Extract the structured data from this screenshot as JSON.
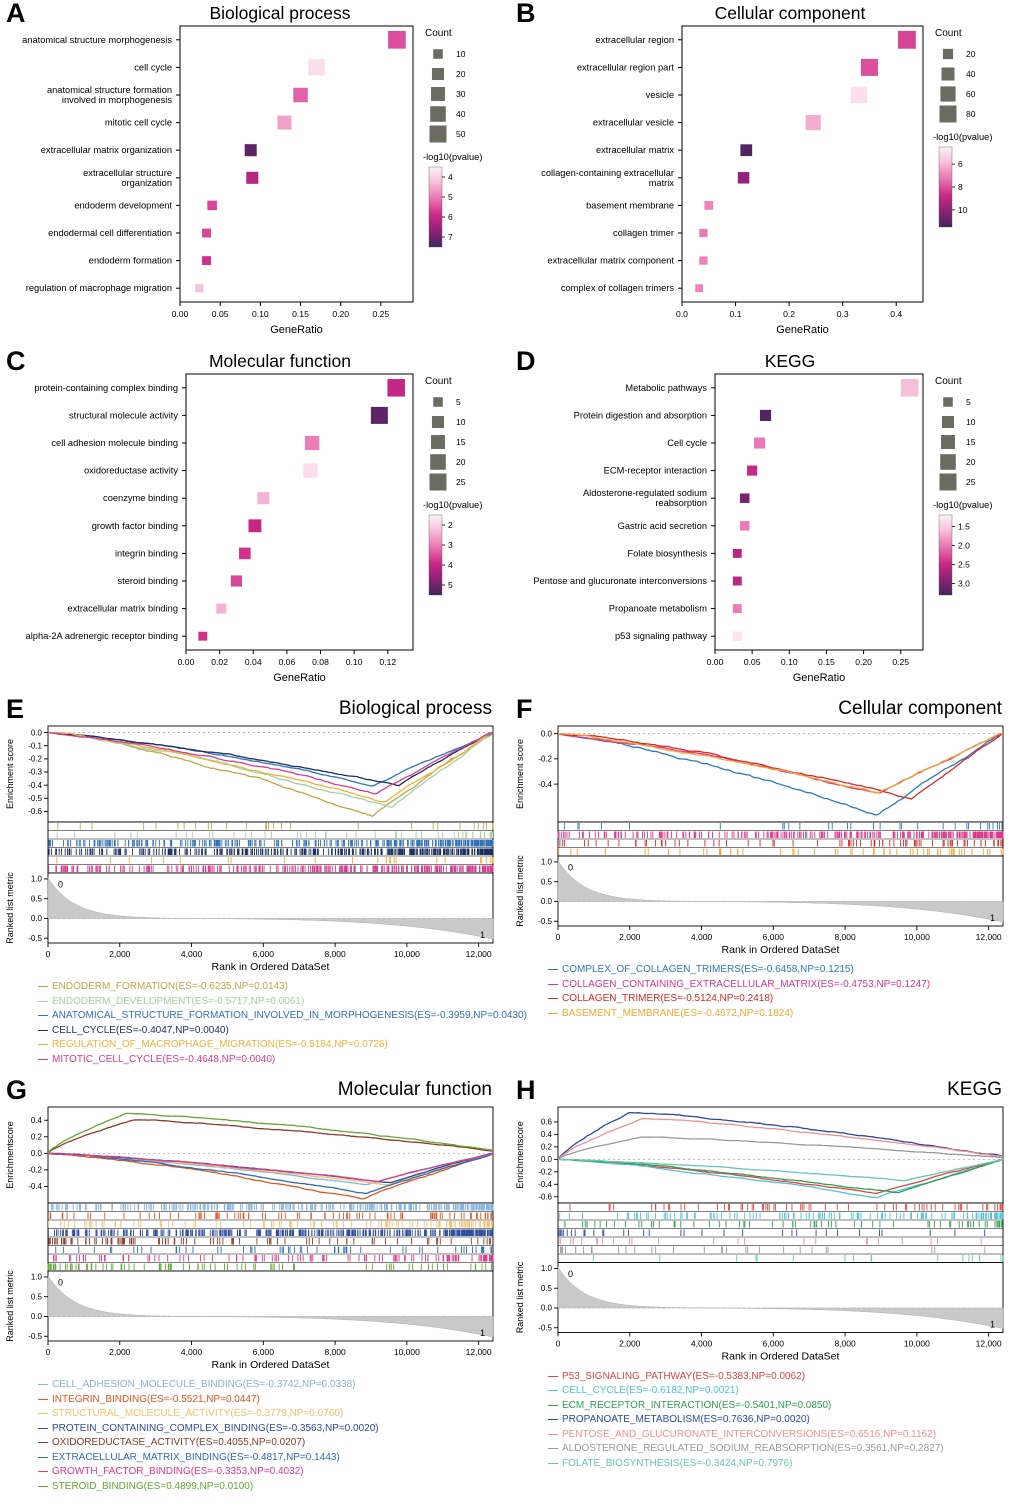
{
  "style": {
    "pvalue_gradient": [
      "#fdf3f8",
      "#f6bcd8",
      "#ea74b2",
      "#cb2a86",
      "#8c2277",
      "#41265c"
    ],
    "count_square_color": "#6b6b5f",
    "metric_fill": "#c9c9c9",
    "metric_stroke": "#b0b0b0",
    "frame_color": "#000000"
  },
  "panels": [
    {
      "letter": "A",
      "title": "Biological process",
      "kind": "dotplot",
      "chart": 0
    },
    {
      "letter": "B",
      "title": "Cellular component",
      "kind": "dotplot",
      "chart": 1
    },
    {
      "letter": "C",
      "title": "Molecular function",
      "kind": "dotplot",
      "chart": 2
    },
    {
      "letter": "D",
      "title": "KEGG",
      "kind": "dotplot",
      "chart": 3
    },
    {
      "letter": "E",
      "title": "Biological process",
      "kind": "gsea",
      "chart": 4
    },
    {
      "letter": "F",
      "title": "Cellular component",
      "kind": "gsea",
      "chart": 5
    },
    {
      "letter": "G",
      "title": "Molecular function",
      "kind": "gsea",
      "chart": 6
    },
    {
      "letter": "H",
      "title": "KEGG",
      "kind": "gsea",
      "chart": 7
    }
  ],
  "chart_data": [
    {
      "type": "scatter",
      "panel": "A",
      "title": "Biological process",
      "xlabel": "GeneRatio",
      "xlim": [
        0,
        0.29
      ],
      "xticks": [
        "0.00",
        "0.05",
        "0.10",
        "0.15",
        "0.20",
        "0.25"
      ],
      "count_legend": {
        "title": "Count",
        "values": [
          10,
          20,
          30,
          40,
          50
        ]
      },
      "pvalue_legend": {
        "title": "-log10(pvalue)",
        "ticks": [
          "4",
          "5",
          "6",
          "7"
        ],
        "range": [
          3.5,
          7.5
        ]
      },
      "points": [
        {
          "term": "anatomical structure morphogenesis",
          "gene_ratio": 0.27,
          "count": 55,
          "neglog10_pvalue": 5.5
        },
        {
          "term": "cell cycle",
          "gene_ratio": 0.17,
          "count": 45,
          "neglog10_pvalue": 3.8
        },
        {
          "term": "anatomical structure formation involved in morphogenesis",
          "gene_ratio": 0.15,
          "count": 33,
          "neglog10_pvalue": 5.3
        },
        {
          "term": "mitotic cell cycle",
          "gene_ratio": 0.13,
          "count": 30,
          "neglog10_pvalue": 4.6
        },
        {
          "term": "extracellular matrix organization",
          "gene_ratio": 0.088,
          "count": 20,
          "neglog10_pvalue": 7.2
        },
        {
          "term": "extracellular structure organization",
          "gene_ratio": 0.09,
          "count": 20,
          "neglog10_pvalue": 6.2
        },
        {
          "term": "endoderm development",
          "gene_ratio": 0.04,
          "count": 10,
          "neglog10_pvalue": 5.6
        },
        {
          "term": "endodermal cell differentiation",
          "gene_ratio": 0.033,
          "count": 8,
          "neglog10_pvalue": 5.6
        },
        {
          "term": "endoderm formation",
          "gene_ratio": 0.033,
          "count": 8,
          "neglog10_pvalue": 5.8
        },
        {
          "term": "regulation of macrophage migration",
          "gene_ratio": 0.024,
          "count": 6,
          "neglog10_pvalue": 4.2
        }
      ]
    },
    {
      "type": "scatter",
      "panel": "B",
      "title": "Cellular component",
      "xlabel": "GeneRatio",
      "xlim": [
        0,
        0.45
      ],
      "xticks": [
        "0.0",
        "0.1",
        "0.2",
        "0.3",
        "0.4"
      ],
      "count_legend": {
        "title": "Count",
        "values": [
          20,
          40,
          60,
          80
        ]
      },
      "pvalue_legend": {
        "title": "-log10(pvalue)",
        "ticks": [
          "6",
          "8",
          "10"
        ],
        "range": [
          4.5,
          11.5
        ]
      },
      "points": [
        {
          "term": "extracellular region",
          "gene_ratio": 0.42,
          "count": 90,
          "neglog10_pvalue": 8.2
        },
        {
          "term": "extracellular region part",
          "gene_ratio": 0.35,
          "count": 80,
          "neglog10_pvalue": 8.0
        },
        {
          "term": "vesicle",
          "gene_ratio": 0.33,
          "count": 72,
          "neglog10_pvalue": 5.0
        },
        {
          "term": "extracellular vesicle",
          "gene_ratio": 0.245,
          "count": 60,
          "neglog10_pvalue": 6.2
        },
        {
          "term": "extracellular matrix",
          "gene_ratio": 0.12,
          "count": 30,
          "neglog10_pvalue": 11.2
        },
        {
          "term": "collagen-containing extracellular matrix",
          "gene_ratio": 0.115,
          "count": 28,
          "neglog10_pvalue": 10.0
        },
        {
          "term": "basement membrane",
          "gene_ratio": 0.05,
          "count": 12,
          "neglog10_pvalue": 7.0
        },
        {
          "term": "collagen trimer",
          "gene_ratio": 0.04,
          "count": 10,
          "neglog10_pvalue": 7.2
        },
        {
          "term": "extracellular matrix component",
          "gene_ratio": 0.04,
          "count": 10,
          "neglog10_pvalue": 7.0
        },
        {
          "term": "complex of collagen trimers",
          "gene_ratio": 0.032,
          "count": 8,
          "neglog10_pvalue": 7.0
        }
      ]
    },
    {
      "type": "scatter",
      "panel": "C",
      "title": "Molecular function",
      "xlabel": "GeneRatio",
      "xlim": [
        0,
        0.135
      ],
      "xticks": [
        "0.00",
        "0.02",
        "0.04",
        "0.06",
        "0.08",
        "0.10",
        "0.12"
      ],
      "count_legend": {
        "title": "Count",
        "values": [
          5,
          10,
          15,
          20,
          25
        ]
      },
      "pvalue_legend": {
        "title": "-log10(pvalue)",
        "ticks": [
          "2",
          "3",
          "4",
          "5"
        ],
        "range": [
          1.5,
          5.5
        ]
      },
      "points": [
        {
          "term": "protein-containing complex binding",
          "gene_ratio": 0.125,
          "count": 27,
          "neglog10_pvalue": 4.0
        },
        {
          "term": "structural molecule activity",
          "gene_ratio": 0.115,
          "count": 25,
          "neglog10_pvalue": 5.2
        },
        {
          "term": "cell adhesion molecule binding",
          "gene_ratio": 0.075,
          "count": 16,
          "neglog10_pvalue": 3.0
        },
        {
          "term": "oxidoreductase activity",
          "gene_ratio": 0.074,
          "count": 16,
          "neglog10_pvalue": 1.8
        },
        {
          "term": "coenzyme binding",
          "gene_ratio": 0.046,
          "count": 10,
          "neglog10_pvalue": 2.4
        },
        {
          "term": "growth factor binding",
          "gene_ratio": 0.041,
          "count": 12,
          "neglog10_pvalue": 4.0
        },
        {
          "term": "integrin binding",
          "gene_ratio": 0.035,
          "count": 9,
          "neglog10_pvalue": 3.8
        },
        {
          "term": "steroid binding",
          "gene_ratio": 0.03,
          "count": 8,
          "neglog10_pvalue": 3.6
        },
        {
          "term": "extracellular matrix binding",
          "gene_ratio": 0.021,
          "count": 6,
          "neglog10_pvalue": 2.4
        },
        {
          "term": "alpha-2A adrenergic receptor binding",
          "gene_ratio": 0.01,
          "count": 4,
          "neglog10_pvalue": 3.8
        }
      ]
    },
    {
      "type": "scatter",
      "panel": "D",
      "title": "KEGG",
      "xlabel": "GeneRatio",
      "xlim": [
        0,
        0.28
      ],
      "xticks": [
        "0.00",
        "0.05",
        "0.10",
        "0.15",
        "0.20",
        "0.25"
      ],
      "count_legend": {
        "title": "Count",
        "values": [
          5,
          10,
          15,
          20,
          25
        ]
      },
      "pvalue_legend": {
        "title": "-log10(pvalue)",
        "ticks": [
          "1.5",
          "2.0",
          "2.5",
          "3.0"
        ],
        "range": [
          1.2,
          3.3
        ]
      },
      "points": [
        {
          "term": "Metabolic pathways",
          "gene_ratio": 0.262,
          "count": 27,
          "neglog10_pvalue": 1.6
        },
        {
          "term": "Protein digestion and absorption",
          "gene_ratio": 0.068,
          "count": 8,
          "neglog10_pvalue": 3.2
        },
        {
          "term": "Cell cycle",
          "gene_ratio": 0.06,
          "count": 8,
          "neglog10_pvalue": 2.0
        },
        {
          "term": "ECM-receptor interaction",
          "gene_ratio": 0.05,
          "count": 6,
          "neglog10_pvalue": 2.5
        },
        {
          "term": "Aldosterone-regulated sodium reabsorption",
          "gene_ratio": 0.04,
          "count": 5,
          "neglog10_pvalue": 3.0
        },
        {
          "term": "Gastric acid secretion",
          "gene_ratio": 0.04,
          "count": 5,
          "neglog10_pvalue": 2.0
        },
        {
          "term": "Folate biosynthesis",
          "gene_ratio": 0.03,
          "count": 4,
          "neglog10_pvalue": 2.6
        },
        {
          "term": "Pentose and glucuronate interconversions",
          "gene_ratio": 0.03,
          "count": 4,
          "neglog10_pvalue": 2.6
        },
        {
          "term": "Propanoate metabolism",
          "gene_ratio": 0.03,
          "count": 4,
          "neglog10_pvalue": 2.0
        },
        {
          "term": "p53 signaling pathway",
          "gene_ratio": 0.03,
          "count": 5,
          "neglog10_pvalue": 1.3
        }
      ]
    },
    {
      "type": "line",
      "panel": "E",
      "title": "Biological process",
      "es_ylabel": "Enrichment score",
      "metric_ylabel": "Ranked list metric",
      "xlabel": "Rank in Ordered DataSet",
      "xlim": [
        0,
        12400
      ],
      "xticks": [
        "0",
        "2,000",
        "4,000",
        "6,000",
        "8,000",
        "10,000",
        "12,000"
      ],
      "es_yticks": [
        "0.0",
        "-0.1",
        "-0.2",
        "-0.3",
        "-0.4",
        "-0.5",
        "-0.6"
      ],
      "es_ylim": [
        -0.68,
        0.05
      ],
      "metric_yticks": [
        "1.0",
        "0.5",
        "0.0",
        "-0.5"
      ],
      "metric_ylim": [
        -0.62,
        1.15
      ],
      "metric_annotations": {
        "start": "0",
        "end": "1"
      },
      "series": [
        {
          "name": "ENDODERM_FORMATION",
          "es": "-0.6235",
          "np": "0.0143",
          "color": "#bfa54e",
          "hits": 30
        },
        {
          "name": "ENDODERM_DEVELOPMENT",
          "es": "-0.5717",
          "np": "0.0061",
          "color": "#a3d39c",
          "hits": 45
        },
        {
          "name": "ANATOMICAL_STRUCTURE_FORMATION_INVOLVED_IN_MORPHOGENESIS",
          "es": "-0.3959",
          "np": "0.0430",
          "color": "#2f72b8",
          "hits": 320
        },
        {
          "name": "CELL_CYCLE",
          "es": "-0.4047",
          "np": "0.0040",
          "color": "#1b2f5e",
          "hits": 380
        },
        {
          "name": "REGULATION_OF_MACROPHAGE_MIGRATION",
          "es": "-0.5184",
          "np": "0.0726",
          "color": "#eeb23e",
          "hits": 25
        },
        {
          "name": "MITOTIC_CELL_CYCLE",
          "es": "-0.4648",
          "np": "0.0040",
          "color": "#d63d92",
          "hits": 300
        }
      ]
    },
    {
      "type": "line",
      "panel": "F",
      "title": "Cellular component",
      "es_ylabel": "Enrichment score",
      "metric_ylabel": "Ranked list metric",
      "xlabel": "Rank in Ordered DataSet",
      "xlim": [
        0,
        12400
      ],
      "xticks": [
        "0",
        "2,000",
        "4,000",
        "6,000",
        "8,000",
        "10,000",
        "12,000"
      ],
      "es_yticks": [
        "0.0",
        "-0.2",
        "-0.4"
      ],
      "es_ylim": [
        -0.7,
        0.06
      ],
      "metric_yticks": [
        "1.0",
        "0.5",
        "0.0",
        "-0.5"
      ],
      "metric_ylim": [
        -0.62,
        1.15
      ],
      "metric_annotations": {
        "start": "0",
        "end": "1"
      },
      "series": [
        {
          "name": "COMPLEX_OF_COLLAGEN_TRIMERS",
          "es": "-0.6458",
          "np": "0.1215",
          "color": "#2b7bba",
          "hits": 30
        },
        {
          "name": "COLLAGEN_CONTAINING_EXTRACELLULAR_MATRIX",
          "es": "-0.4753",
          "np": "0.1247",
          "color": "#e0368c",
          "hits": 300
        },
        {
          "name": "COLLAGEN_TRIMER",
          "es": "-0.5124",
          "np": "0.2418",
          "color": "#d42a2a",
          "hits": 80
        },
        {
          "name": "BASEMENT_MEMBRANE",
          "es": "-0.4672",
          "np": "0.1824",
          "color": "#f0a830",
          "hits": 60
        }
      ]
    },
    {
      "type": "line",
      "panel": "G",
      "title": "Molecular function",
      "es_ylabel": "Enrichmentscore",
      "metric_ylabel": "Ranked list metric",
      "xlabel": "Rank in Ordered DataSet",
      "xlim": [
        0,
        12400
      ],
      "xticks": [
        "0",
        "2,000",
        "4,000",
        "6,000",
        "8,000",
        "10,000",
        "12,000"
      ],
      "es_yticks": [
        "0.4",
        "0.2",
        "0.0",
        "-0.2",
        "-0.4"
      ],
      "es_ylim": [
        -0.6,
        0.56
      ],
      "metric_yticks": [
        "1.0",
        "0.5",
        "0.0",
        "-0.5"
      ],
      "metric_ylim": [
        -0.62,
        1.15
      ],
      "metric_annotations": {
        "start": "0",
        "end": "1"
      },
      "series": [
        {
          "name": "CELL_ADHESION_MOLECULE_BINDING",
          "es": "-0.3742",
          "np": "0.0338",
          "color": "#85b4e0",
          "hits": 300
        },
        {
          "name": "INTEGRIN_BINDING",
          "es": "-0.5521",
          "np": "0.0447",
          "color": "#e2571f",
          "hits": 90
        },
        {
          "name": "STRUCTURAL_MOLECULE_ACTIVITY",
          "es": "-0.3779",
          "np": "0.0760",
          "color": "#f3c06b",
          "hits": 110
        },
        {
          "name": "PROTEIN_CONTAINING_COMPLEX_BINDING",
          "es": "-0.3563",
          "np": "0.0020",
          "color": "#2c4a9e",
          "hits": 380
        },
        {
          "name": "OXIDOREDUCTASE_ACTIVITY",
          "es": "0.4055",
          "np": "0.0207",
          "color": "#8c3b26",
          "hits": 100
        },
        {
          "name": "EXTRACELLULAR_MATRIX_BINDING",
          "es": "-0.4817",
          "np": "0.1443",
          "color": "#2e6db4",
          "hits": 60
        },
        {
          "name": "GROWTH_FACTOR_BINDING",
          "es": "-0.3353",
          "np": "0.4032",
          "color": "#df3a8c",
          "hits": 120
        },
        {
          "name": "STEROID_BINDING",
          "es": "0.4899",
          "np": "0.0100",
          "color": "#62a832",
          "hits": 90
        }
      ]
    },
    {
      "type": "line",
      "panel": "H",
      "title": "KEGG",
      "es_ylabel": "Enrichmentscore",
      "metric_ylabel": "Ranked list metric",
      "xlabel": "Rank in Ordered DataSet",
      "xlim": [
        0,
        12400
      ],
      "xticks": [
        "0",
        "2,000",
        "4,000",
        "6,000",
        "8,000",
        "10,000",
        "12,000"
      ],
      "es_yticks": [
        "0.6",
        "0.4",
        "0.2",
        "0.0",
        "-0.2",
        "-0.4",
        "-0.6"
      ],
      "es_ylim": [
        -0.7,
        0.84
      ],
      "metric_yticks": [
        "1.0",
        "0.5",
        "0.0",
        "-0.5"
      ],
      "metric_ylim": [
        -0.62,
        1.15
      ],
      "metric_annotations": {
        "start": "0",
        "end": "1"
      },
      "series": [
        {
          "name": "P53_SIGNALING_PATHWAY",
          "es": "-0.5383",
          "np": "0.0062",
          "color": "#e04545",
          "hits": 70
        },
        {
          "name": "CELL_CYCLE",
          "es": "-0.6182",
          "np": "0.0021",
          "color": "#4fc3d9",
          "hits": 130
        },
        {
          "name": "ECM_RECEPTOR_INTERACTION",
          "es": "-0.5401",
          "np": "0.0850",
          "color": "#2f9e4f",
          "hits": 70
        },
        {
          "name": "PROPANOATE_METABOLISM",
          "es": "0.7636",
          "np": "0.0020",
          "color": "#2c4a9e",
          "hits": 35
        },
        {
          "name": "PENTOSE_AND_GLUCURONATE_INTERCONVERSIONS",
          "es": "0.6516",
          "np": "0.1162",
          "color": "#f29090",
          "hits": 25
        },
        {
          "name": "ALDOSTERONE_REGULATED_SODIUM_REABSORPTION",
          "es": "0.3561",
          "np": "0.2827",
          "color": "#9a9a9a",
          "hits": 30
        },
        {
          "name": "FOLATE_BIOSYNTHESIS",
          "es": "-0.3424",
          "np": "0.7976",
          "color": "#67c6b5",
          "hits": 18
        }
      ]
    }
  ]
}
